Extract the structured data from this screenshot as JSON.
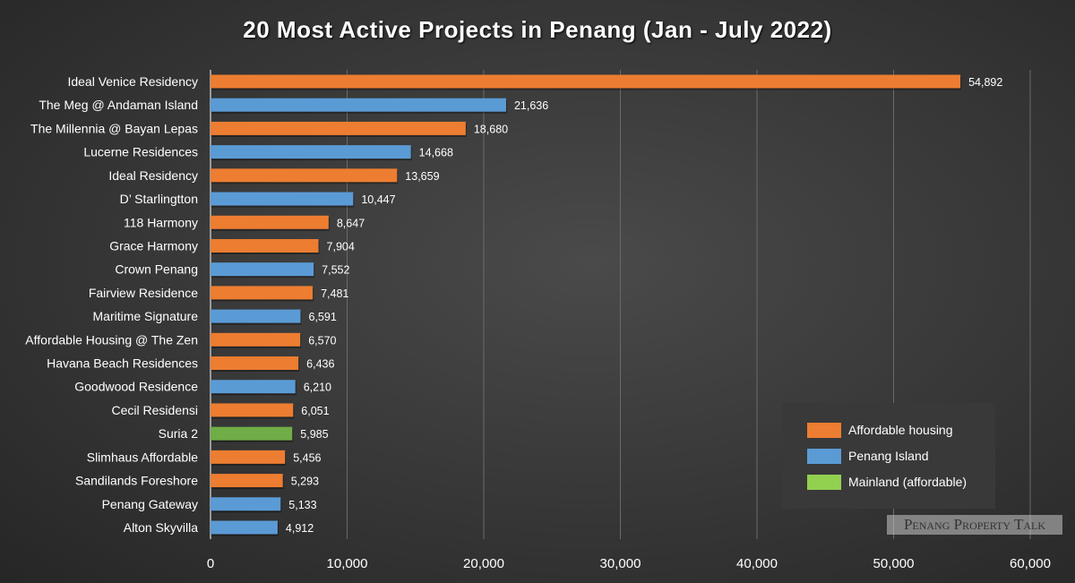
{
  "chart_data": {
    "type": "bar",
    "orientation": "horizontal",
    "title": "20 Most Active Projects in Penang (Jan - July 2022)",
    "categories": [
      "Ideal Venice Residency",
      "The Meg @ Andaman Island",
      "The Millennia @ Bayan Lepas",
      "Lucerne Residences",
      "Ideal Residency",
      "D’ Starlingtton",
      "118 Harmony",
      "Grace Harmony",
      "Crown Penang",
      "Fairview Residence",
      "Maritime Signature",
      "Affordable Housing @ The Zen",
      "Havana Beach Residences",
      "Goodwood Residence",
      "Cecil Residensi",
      "Suria 2",
      "Slimhaus Affordable",
      "Sandilands Foreshore",
      "Penang Gateway",
      "Alton Skyvilla"
    ],
    "values": [
      54892,
      21636,
      18680,
      14668,
      13659,
      10447,
      8647,
      7904,
      7552,
      7481,
      6591,
      6570,
      6436,
      6210,
      6051,
      5985,
      5456,
      5293,
      5133,
      4912
    ],
    "value_labels": [
      "54,892",
      "21,636",
      "18,680",
      "14,668",
      "13,659",
      "10,447",
      "8,647",
      "7,904",
      "7,552",
      "7,481",
      "6,591",
      "6,570",
      "6,436",
      "6,210",
      "6,051",
      "5,985",
      "5,456",
      "5,293",
      "5,133",
      "4,912"
    ],
    "groups": [
      "Affordable housing",
      "Penang Island",
      "Affordable housing",
      "Penang Island",
      "Affordable housing",
      "Penang Island",
      "Affordable housing",
      "Affordable housing",
      "Penang Island",
      "Affordable housing",
      "Penang Island",
      "Affordable housing",
      "Affordable housing",
      "Penang Island",
      "Affordable housing",
      "Mainland (affordable)",
      "Affordable housing",
      "Affordable housing",
      "Penang Island",
      "Penang Island"
    ],
    "xlim": [
      0,
      60000
    ],
    "xticks": [
      0,
      10000,
      20000,
      30000,
      40000,
      50000,
      60000
    ],
    "xtick_labels": [
      "0",
      "10,000",
      "20,000",
      "30,000",
      "40,000",
      "50,000",
      "60,000"
    ],
    "grid": true,
    "legend": {
      "placement": "bottom-right",
      "entries": [
        {
          "name": "Affordable housing",
          "color": "#ed7d31"
        },
        {
          "name": "Penang Island",
          "color": "#5b9bd5"
        },
        {
          "name": "Mainland (affordable)",
          "color": "#70ad47"
        }
      ]
    },
    "colors": {
      "Affordable housing": "#ed7d31",
      "Penang Island": "#5b9bd5",
      "Mainland (affordable)": "#70ad47"
    }
  },
  "watermark": "Penang Property Talk"
}
